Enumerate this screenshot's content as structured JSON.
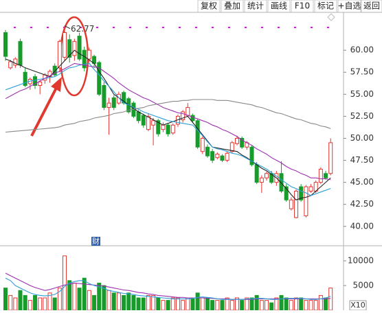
{
  "toolbar": {
    "buttons": [
      "复权",
      "叠加",
      "统计",
      "画线",
      "F10",
      "标记",
      "+自选",
      "返回"
    ]
  },
  "chart_data": [
    {
      "type": "candlestick",
      "badge": "财",
      "categories": [
        null,
        null,
        null,
        null,
        null,
        null,
        null,
        null,
        null,
        null,
        null,
        null,
        null,
        null,
        null,
        null,
        null,
        null,
        null,
        null,
        null,
        null,
        null,
        null,
        null,
        null,
        null,
        null,
        null,
        null,
        null,
        null,
        null,
        null,
        null,
        null,
        null,
        null,
        null,
        null,
        null,
        null,
        null,
        null,
        null,
        null,
        null,
        null,
        null,
        null,
        null,
        null,
        null,
        null,
        null,
        null,
        null,
        null,
        null,
        null,
        null,
        null,
        null,
        null,
        null,
        null,
        null
      ],
      "open": [
        62.0,
        58.0,
        58.3,
        61.0,
        57.5,
        56.2,
        57.0,
        56.0,
        56.6,
        57.0,
        58.2,
        58.0,
        59.2,
        61.2,
        59.4,
        61.6,
        60.0,
        59.0,
        59.3,
        58.6,
        56.0,
        53.5,
        54.6,
        54.0,
        55.2,
        54.5,
        54.0,
        53.0,
        52.6,
        51.0,
        51.5,
        52.0,
        51.0,
        51.5,
        50.6,
        51.6,
        52.1,
        52.6,
        52.6,
        52.0,
        48.5,
        49.0,
        48.5,
        47.8,
        48.0,
        47.5,
        48.5,
        49.4,
        50.0,
        49.0,
        49.0,
        47.0,
        45.0,
        45.5,
        46.0,
        45.0,
        46.0,
        44.5,
        42.0,
        41.0,
        44.5,
        41.2,
        44.0,
        44.0,
        45.0,
        46.0,
        46.0
      ],
      "high": [
        62.3,
        58.9,
        59.2,
        61.3,
        58.0,
        56.9,
        57.3,
        56.6,
        57.4,
        57.8,
        58.5,
        61.2,
        62.77,
        61.8,
        61.3,
        62.0,
        60.4,
        60.3,
        59.5,
        58.8,
        56.4,
        54.6,
        54.9,
        55.3,
        55.4,
        54.7,
        54.2,
        53.2,
        52.8,
        52.8,
        52.3,
        52.2,
        51.8,
        51.7,
        51.7,
        52.7,
        53.2,
        54.0,
        52.8,
        52.2,
        50.2,
        49.3,
        48.8,
        48.4,
        48.2,
        48.5,
        49.7,
        50.3,
        50.2,
        49.7,
        49.2,
        47.3,
        45.8,
        46.2,
        46.3,
        46.3,
        47.4,
        44.8,
        43.3,
        44.2,
        44.8,
        44.7,
        44.8,
        45.2,
        46.7,
        46.3,
        50.0
      ],
      "low": [
        58.8,
        57.8,
        58.0,
        58.0,
        55.8,
        55.5,
        55.6,
        55.0,
        56.2,
        56.3,
        57.0,
        57.5,
        58.8,
        58.6,
        58.8,
        58.8,
        57.6,
        58.6,
        58.0,
        54.8,
        53.2,
        50.4,
        53.2,
        53.8,
        53.8,
        52.8,
        52.3,
        51.7,
        51.2,
        50.8,
        49.2,
        50.2,
        50.7,
        50.2,
        50.4,
        51.3,
        51.8,
        52.4,
        51.8,
        48.8,
        48.2,
        47.8,
        47.2,
        47.6,
        47.3,
        47.3,
        48.3,
        49.2,
        48.8,
        48.7,
        46.8,
        44.8,
        43.8,
        45.2,
        44.8,
        44.6,
        43.8,
        42.8,
        41.8,
        40.9,
        42.8,
        41.0,
        43.8,
        43.8,
        44.8,
        45.3,
        45.8
      ],
      "close": [
        59.3,
        58.7,
        59.0,
        58.3,
        56.0,
        56.7,
        56.0,
        56.4,
        57.2,
        57.6,
        57.2,
        61.0,
        62.0,
        59.2,
        61.0,
        59.0,
        58.0,
        60.0,
        58.5,
        55.0,
        53.5,
        54.0,
        53.5,
        55.0,
        54.0,
        53.0,
        52.5,
        52.0,
        51.5,
        52.5,
        52.0,
        50.5,
        51.5,
        50.5,
        51.5,
        52.5,
        53.0,
        53.5,
        52.0,
        49.0,
        50.0,
        48.0,
        47.5,
        48.2,
        47.5,
        48.3,
        49.5,
        50.0,
        49.0,
        49.5,
        47.0,
        45.0,
        45.5,
        46.0,
        45.0,
        46.0,
        44.0,
        43.0,
        43.0,
        44.0,
        43.0,
        44.5,
        44.5,
        45.0,
        46.5,
        45.5,
        49.5
      ],
      "up_color": "#e5332f",
      "down_color": "#179c2b",
      "lines": [
        {
          "color": "#222222",
          "values": [
            59,
            58.8,
            58.5,
            58.3,
            58,
            57.8,
            57.6,
            57.4,
            57.2,
            57,
            57.6,
            58.2,
            58.8,
            59.4,
            60,
            59.6,
            59.3,
            58.9,
            58.5,
            57.6,
            56.8,
            55.9,
            55,
            54.6,
            54.2,
            53.8,
            53.4,
            53,
            52.7,
            52.4,
            52.1,
            51.8,
            51.5,
            51.7,
            51.9,
            52.1,
            52.3,
            52.5,
            51.8,
            51.1,
            50.4,
            49.7,
            49,
            48.9,
            48.8,
            48.7,
            48.6,
            48.5,
            48.1,
            47.8,
            47.4,
            47,
            46.6,
            46.3,
            45.9,
            45.5,
            44.9,
            44.3,
            43.6,
            43,
            43.2,
            43.3,
            43.5,
            44,
            44.5,
            45,
            45.5
          ]
        },
        {
          "color": "#2a9fd8",
          "values": [
            55.5,
            55.7,
            55.9,
            56.1,
            56.3,
            56.5,
            56.6,
            56.7,
            56.8,
            56.9,
            57,
            57.3,
            57.7,
            58,
            58.1,
            58.3,
            58.4,
            58.5,
            57.8,
            57.2,
            56.5,
            55.9,
            55.3,
            54.6,
            54,
            53.8,
            53.5,
            53.3,
            53,
            52.8,
            52.6,
            52.4,
            52.2,
            52,
            51.9,
            51.8,
            51.7,
            51.6,
            51.5,
            50.9,
            50.3,
            49.6,
            49,
            48.8,
            48.7,
            48.5,
            48.3,
            48.2,
            48,
            47.7,
            47.4,
            47.1,
            46.8,
            46.5,
            46.1,
            45.7,
            45.3,
            44.9,
            44.5,
            44.3,
            44,
            43.8,
            43.5,
            43.7,
            43.9,
            44.1,
            44.3
          ]
        },
        {
          "color": "#9b2fae",
          "values": [
            54.5,
            54.8,
            55.1,
            55.4,
            55.6,
            55.9,
            56.2,
            56.5,
            56.8,
            57.1,
            57.4,
            57.6,
            57.9,
            58.2,
            58.5,
            58.4,
            58.3,
            58.2,
            58.1,
            58,
            57.6,
            57.2,
            56.8,
            56.3,
            55.9,
            55.5,
            55.2,
            54.9,
            54.6,
            54.4,
            54.1,
            53.8,
            53.5,
            53.3,
            53.1,
            52.9,
            52.8,
            52.6,
            52.4,
            52.2,
            52,
            51.8,
            51.5,
            51.3,
            51,
            50.8,
            50.5,
            50.2,
            49.8,
            49.5,
            49.2,
            48.8,
            48.5,
            48.2,
            47.8,
            47.5,
            47.2,
            46.8,
            46.5,
            46.3,
            46,
            45.8,
            45.5,
            45.5,
            45.4,
            45.4,
            45.3
          ]
        },
        {
          "color": "#888888",
          "values": [
            50.7,
            50.75,
            50.8,
            50.85,
            50.9,
            50.95,
            51,
            51.05,
            51.1,
            51.15,
            51.2,
            51.3,
            51.5,
            51.6,
            51.7,
            51.9,
            52,
            52.1,
            52.3,
            52.4,
            52.5,
            52.6,
            52.8,
            52.9,
            53,
            53.2,
            53.3,
            53.4,
            53.5,
            53.7,
            53.8,
            53.9,
            54,
            54.1,
            54.2,
            54.2,
            54.3,
            54.3,
            54.4,
            54.4,
            54.4,
            54.4,
            54.4,
            54.3,
            54.3,
            54.3,
            54.2,
            54.1,
            54,
            53.9,
            53.8,
            53.6,
            53.5,
            53.3,
            53.1,
            52.9,
            52.8,
            52.6,
            52.4,
            52.2,
            52.1,
            51.9,
            51.7,
            51.6,
            51.4,
            51.3,
            51.1
          ]
        }
      ],
      "ylim": [
        37.8,
        64.3
      ],
      "yticks": [
        {
          "value": 40,
          "label": "40.00"
        },
        {
          "value": 42.5,
          "label": "42.50"
        },
        {
          "value": 45,
          "label": "45.00"
        },
        {
          "value": 47.5,
          "label": "47.50"
        },
        {
          "value": 50,
          "label": "50.00"
        },
        {
          "value": 52.5,
          "label": "52.50"
        },
        {
          "value": 55,
          "label": "55.00"
        },
        {
          "value": 57.5,
          "label": "57.50"
        },
        {
          "value": 60,
          "label": "60.00"
        }
      ]
    },
    {
      "type": "bar",
      "scale_label": "X10",
      "categories": [
        null,
        null,
        null,
        null,
        null,
        null,
        null,
        null,
        null,
        null,
        null,
        null,
        null,
        null,
        null,
        null,
        null,
        null,
        null,
        null,
        null,
        null,
        null,
        null,
        null,
        null,
        null,
        null,
        null,
        null,
        null,
        null,
        null,
        null,
        null,
        null,
        null,
        null,
        null,
        null,
        null,
        null,
        null,
        null,
        null,
        null,
        null,
        null,
        null,
        null,
        null,
        null,
        null,
        null,
        null,
        null,
        null,
        null,
        null,
        null,
        null,
        null,
        null,
        null,
        null,
        null,
        null
      ],
      "values": [
        4500,
        3000,
        2500,
        4000,
        3000,
        2000,
        3000,
        2500,
        2500,
        3500,
        2500,
        4500,
        11000,
        6000,
        5500,
        4500,
        6500,
        4000,
        3000,
        5500,
        5000,
        4000,
        3500,
        3500,
        3000,
        3500,
        3000,
        2500,
        2500,
        3000,
        3000,
        2500,
        2000,
        2000,
        2500,
        2500,
        2000,
        2500,
        2500,
        3500,
        2500,
        2500,
        2000,
        2000,
        2000,
        2500,
        2000,
        2500,
        2000,
        2500,
        2500,
        3000,
        2000,
        2000,
        1500,
        2500,
        3000,
        2500,
        2000,
        2500,
        2500,
        2000,
        2000,
        2000,
        3000,
        2500,
        4500
      ],
      "lines": [
        {
          "color": "#9b2fae",
          "values": [
            7500,
            7000,
            6500,
            6000,
            5500,
            5000,
            4600,
            4300,
            4000,
            4200,
            4500,
            4800,
            5100,
            5300,
            5500,
            5400,
            5300,
            5200,
            5100,
            5000,
            4900,
            4700,
            4500,
            4300,
            4100,
            4000,
            3800,
            3600,
            3500,
            3300,
            3200,
            3000,
            2900,
            2800,
            2700,
            2600,
            2600,
            2500,
            2500,
            2500,
            2500,
            2400,
            2400,
            2300,
            2300,
            2300,
            2200,
            2200,
            2200,
            2200,
            2200,
            2300,
            2300,
            2300,
            2300,
            2300,
            2300,
            2300,
            2300,
            2300,
            2300,
            2300,
            2300,
            2300,
            2300,
            2300,
            2400
          ]
        },
        {
          "color": "#2a9fd8",
          "values": [
            6500,
            6000,
            5000,
            4500,
            4000,
            3500,
            3200,
            3000,
            2900,
            3000,
            3200,
            3800,
            4800,
            5500,
            5800,
            6000,
            6000,
            5400,
            5000,
            4700,
            4400,
            4000,
            3800,
            3600,
            3400,
            3300,
            3200,
            3000,
            2900,
            2800,
            2700,
            2600,
            2500,
            2400,
            2300,
            2300,
            2300,
            2300,
            2400,
            2600,
            2700,
            2600,
            2500,
            2300,
            2200,
            2200,
            2200,
            2200,
            2200,
            2300,
            2300,
            2400,
            2400,
            2300,
            2200,
            2200,
            2300,
            2400,
            2400,
            2400,
            2400,
            2300,
            2200,
            2200,
            2300,
            2500,
            2800
          ]
        }
      ],
      "ylim": [
        0,
        12500
      ],
      "yticks": [
        5000,
        10000
      ]
    }
  ]
}
